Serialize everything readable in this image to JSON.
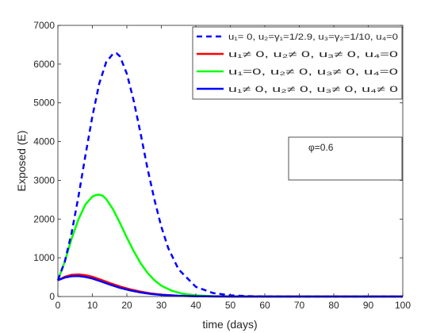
{
  "chart_data": {
    "type": "line",
    "xlabel": "time (days)",
    "ylabel": "Exposed (E)",
    "xlim": [
      0,
      100
    ],
    "ylim": [
      0,
      7000
    ],
    "xticks": [
      0,
      10,
      20,
      30,
      40,
      50,
      60,
      70,
      80,
      90,
      100
    ],
    "yticks": [
      0,
      1000,
      2000,
      3000,
      4000,
      5000,
      6000,
      7000
    ],
    "grid": false,
    "legend_position": "top-right",
    "annotation": "φ=0.6",
    "series": [
      {
        "name": "u₁= 0, u₂=γ₁=1/2.9, u₃=γ₂=1/10, u₄=0",
        "color": "#0000ff",
        "style": "dashed",
        "x": [
          0,
          2,
          4,
          6,
          8,
          10,
          12,
          14,
          16,
          17,
          18,
          20,
          22,
          24,
          26,
          28,
          30,
          32,
          35,
          40,
          45,
          50,
          55,
          60,
          65,
          70,
          80,
          90,
          100
        ],
        "y": [
          420,
          900,
          1650,
          2600,
          3650,
          4650,
          5500,
          6050,
          6270,
          6280,
          6200,
          5750,
          5050,
          4200,
          3300,
          2500,
          1800,
          1250,
          700,
          250,
          90,
          30,
          10,
          3,
          1,
          0,
          0,
          0,
          0
        ]
      },
      {
        "name": "u₁≠ 0, u₂≠ 0, u₃≠ 0, u₄=0",
        "color": "#ff0000",
        "style": "solid",
        "x": [
          0,
          2,
          4,
          6,
          8,
          10,
          12,
          15,
          18,
          21,
          24,
          27,
          30,
          35,
          40,
          45,
          50,
          60,
          70,
          80,
          90,
          100
        ],
        "y": [
          420,
          510,
          560,
          570,
          550,
          510,
          450,
          350,
          260,
          185,
          125,
          80,
          50,
          20,
          8,
          3,
          1,
          0,
          0,
          0,
          0,
          0
        ]
      },
      {
        "name": "u₁=0, u₂≠ 0, u₃≠ 0, u₄=0",
        "color": "#00ff00",
        "style": "solid",
        "x": [
          0,
          2,
          4,
          6,
          8,
          10,
          11,
          12,
          13,
          14,
          16,
          18,
          20,
          22,
          24,
          26,
          28,
          30,
          33,
          36,
          40,
          45,
          50,
          55,
          60,
          70,
          80,
          90,
          100
        ],
        "y": [
          420,
          900,
          1500,
          2000,
          2380,
          2580,
          2620,
          2630,
          2600,
          2520,
          2250,
          1900,
          1520,
          1170,
          860,
          610,
          420,
          280,
          150,
          75,
          30,
          10,
          3,
          1,
          0,
          0,
          0,
          0,
          0
        ]
      },
      {
        "name": "u₁≠ 0, u₂≠ 0, u₃≠ 0, u₄≠ 0",
        "color": "#0000ff",
        "style": "solid",
        "x": [
          0,
          2,
          4,
          6,
          8,
          10,
          12,
          15,
          18,
          21,
          24,
          27,
          30,
          35,
          40,
          45,
          50,
          60,
          70,
          80,
          90,
          100
        ],
        "y": [
          420,
          490,
          525,
          530,
          505,
          465,
          405,
          310,
          225,
          158,
          105,
          67,
          42,
          17,
          6,
          2,
          1,
          0,
          0,
          0,
          0,
          0
        ]
      }
    ]
  }
}
